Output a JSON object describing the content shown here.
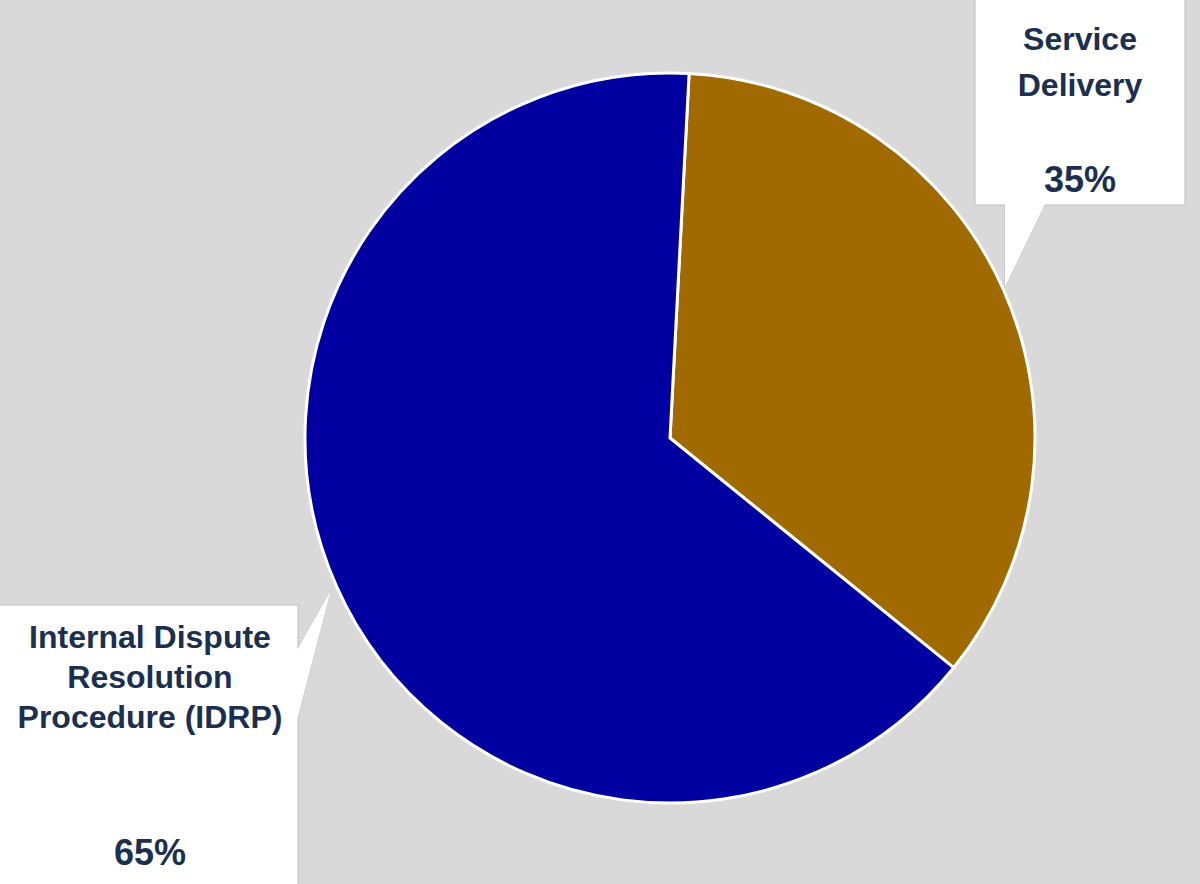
{
  "chart_data": {
    "type": "pie",
    "categories": [
      "Service Delivery",
      "Internal Dispute Resolution Procedure (IDRP)"
    ],
    "values": [
      35,
      65
    ],
    "value_labels": [
      "35%",
      "65%"
    ],
    "colors": [
      "#a06a00",
      "#0000a0"
    ],
    "data_labels": true
  }
}
